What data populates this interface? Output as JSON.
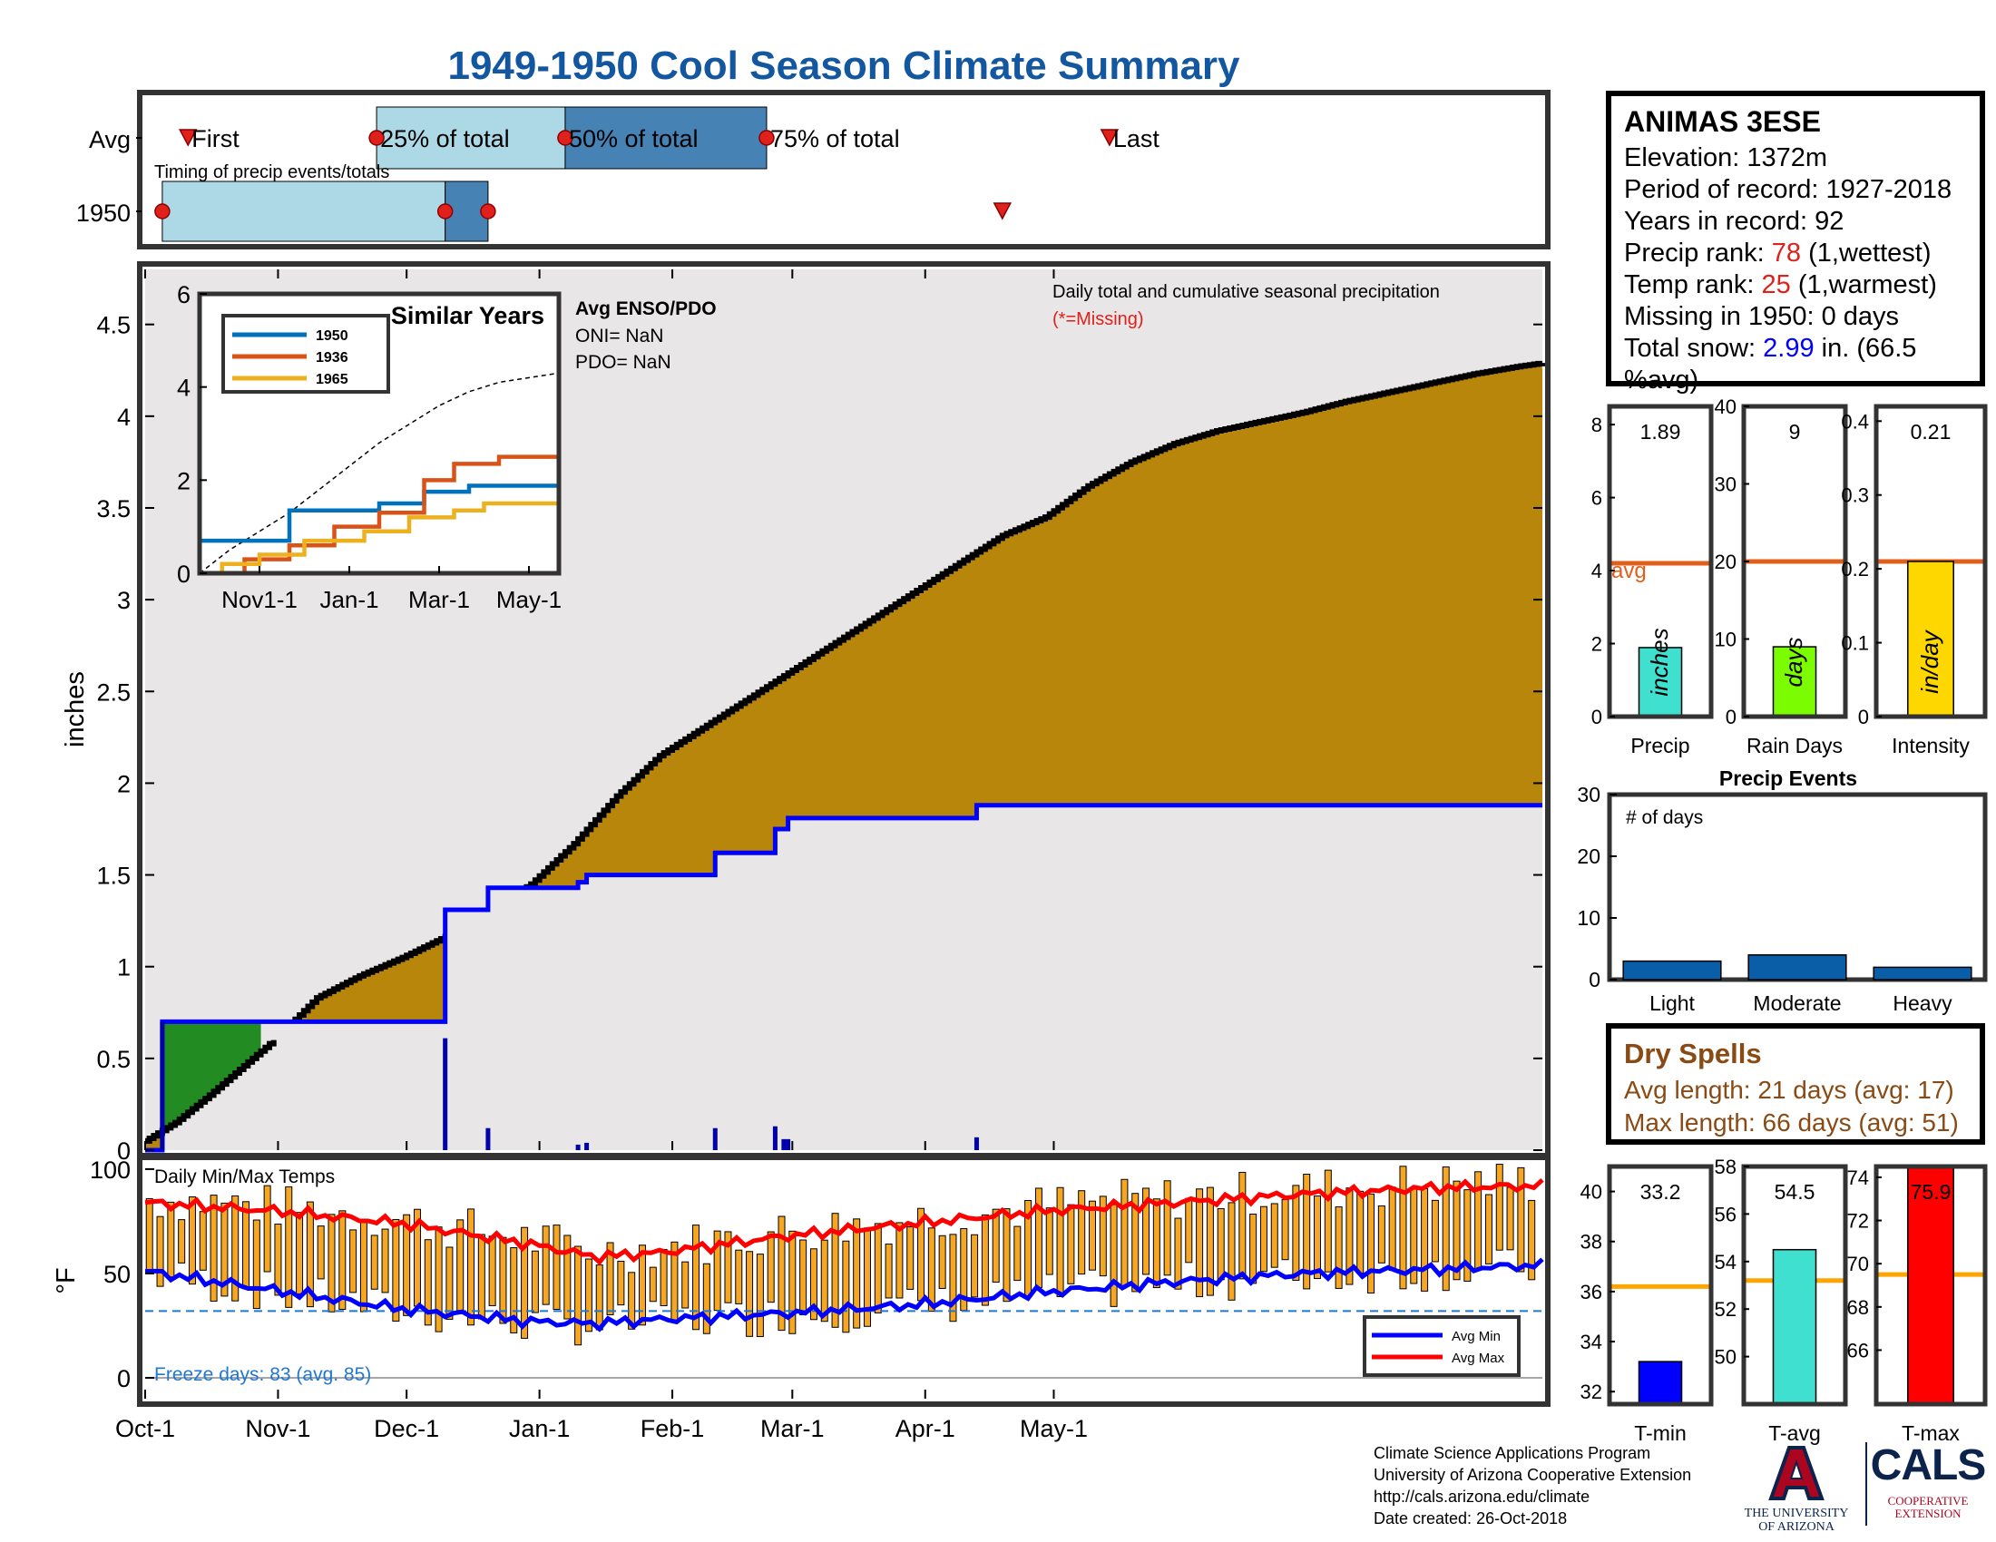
{
  "title": "1949-1950 Cool Season Climate Summary",
  "station": {
    "name": "ANIMAS 3ESE",
    "elevation": "Elevation: 1372m",
    "period": "Period of record: 1927-2018",
    "years": "Years in record: 92",
    "precip_rank_label": "Precip rank: ",
    "precip_rank_value": "78",
    "precip_rank_suffix": " (1,wettest)",
    "temp_rank_label": "Temp rank: ",
    "temp_rank_value": "25",
    "temp_rank_suffix": " (1,warmest)",
    "missing": "Missing in 1950: 0 days",
    "snow_label": "Total snow: ",
    "snow_value": "2.99",
    "snow_suffix": " in. (66.5",
    "snow_suffix2": "%avg)"
  },
  "dry_spells": {
    "title": "Dry Spells",
    "avg_line": "Avg length: 21 days (avg: 17)",
    "max_line": "Max length: 66 days (avg: 51)"
  },
  "footer": {
    "line1": "Climate Science Applications Program",
    "line2": "University of Arizona Cooperative Extension",
    "line3": "http://cals.arizona.edu/climate",
    "line4": " Date created: 26-Oct-2018"
  },
  "logos": {
    "ua_line1": "THE UNIVERSITY",
    "ua_line2": "OF ARIZONA",
    "cals": "CALS",
    "cals_sub1": "COOPERATIVE",
    "cals_sub2": "EXTENSION"
  },
  "colors": {
    "brand_blue": "#1357a0",
    "cum_avg_fill": "#b8860b",
    "cum_1950_line": "#0000ff",
    "green_fill": "#228b22",
    "missing_red": "#e0201b",
    "temp_bar": "#f5a623",
    "avg_min": "#0000ff",
    "avg_max": "#ff0000",
    "avg_line": "#e0601b"
  },
  "chart_data": [
    {
      "type": "timeline",
      "title": "Timing of precip events/totals",
      "rows": [
        "Avg",
        "1950"
      ],
      "avg_markers": [
        "First",
        "25% of total",
        "50% of total",
        "75% of total",
        "Last"
      ],
      "avg_dates": [
        "1949-10-11",
        "1949-11-24",
        "1950-01-07",
        "1950-02-23",
        "1950-05-14"
      ],
      "y1950_dates": [
        "1949-10-05",
        "1949-12-10",
        "1949-12-20"
      ],
      "y1950_last": "1950-04-19"
    },
    {
      "type": "area",
      "title": "Daily total and cumulative seasonal precipitation",
      "subtitle": "(*=Missing)",
      "ylabel": "inches",
      "ylim": [
        0,
        4.8
      ],
      "yticks": [
        0,
        0.5,
        1,
        1.5,
        2,
        2.5,
        3,
        3.5,
        4,
        4.5
      ],
      "xticks": [
        "Oct-1",
        "Nov-1",
        "Dec-1",
        "Jan-1",
        "Feb-1",
        "Mar-1",
        "Apr-1",
        "May-1"
      ],
      "avg_cumulative": [
        [
          0,
          0.05
        ],
        [
          7,
          0.15
        ],
        [
          15,
          0.3
        ],
        [
          25,
          0.5
        ],
        [
          31,
          0.62
        ],
        [
          40,
          0.83
        ],
        [
          50,
          0.95
        ],
        [
          60,
          1.05
        ],
        [
          75,
          1.22
        ],
        [
          90,
          1.45
        ],
        [
          100,
          1.67
        ],
        [
          110,
          1.93
        ],
        [
          120,
          2.15
        ],
        [
          130,
          2.3
        ],
        [
          140,
          2.45
        ],
        [
          150,
          2.6
        ],
        [
          160,
          2.75
        ],
        [
          170,
          2.9
        ],
        [
          180,
          3.05
        ],
        [
          190,
          3.2
        ],
        [
          200,
          3.35
        ],
        [
          210,
          3.45
        ],
        [
          220,
          3.62
        ],
        [
          230,
          3.75
        ],
        [
          240,
          3.85
        ],
        [
          250,
          3.92
        ],
        [
          260,
          3.97
        ],
        [
          270,
          4.02
        ],
        [
          280,
          4.08
        ],
        [
          290,
          4.13
        ],
        [
          300,
          4.18
        ],
        [
          310,
          4.23
        ],
        [
          320,
          4.27
        ],
        [
          326,
          4.29
        ]
      ],
      "cumulative_1950": [
        [
          0,
          0
        ],
        [
          4,
          0
        ],
        [
          4,
          0.7
        ],
        [
          70,
          0.7
        ],
        [
          70,
          1.31
        ],
        [
          80,
          1.31
        ],
        [
          80,
          1.43
        ],
        [
          101,
          1.43
        ],
        [
          101,
          1.46
        ],
        [
          103,
          1.46
        ],
        [
          103,
          1.5
        ],
        [
          133,
          1.5
        ],
        [
          133,
          1.62
        ],
        [
          147,
          1.62
        ],
        [
          147,
          1.75
        ],
        [
          150,
          1.75
        ],
        [
          150,
          1.81
        ],
        [
          194,
          1.81
        ],
        [
          194,
          1.88
        ],
        [
          326,
          1.88
        ]
      ],
      "daily_1950": [
        [
          4,
          0.7
        ],
        [
          70,
          0.61
        ],
        [
          80,
          0.12
        ],
        [
          101,
          0.03
        ],
        [
          103,
          0.04
        ],
        [
          133,
          0.12
        ],
        [
          147,
          0.13
        ],
        [
          149,
          0.06
        ],
        [
          150,
          0.06
        ],
        [
          194,
          0.07
        ]
      ]
    },
    {
      "type": "line",
      "title": "Similar Years",
      "xticks": [
        "Nov1-1",
        "Jan-1",
        "Mar-1",
        "May-1"
      ],
      "ylim": [
        0,
        6
      ],
      "yticks": [
        0,
        2,
        4,
        6
      ],
      "enso_title": "Avg ENSO/PDO",
      "oni": "ONI= NaN",
      "pdo": "PDO= NaN",
      "series": [
        {
          "name": "1950",
          "color": "#0072bd",
          "points": [
            [
              0,
              0.7
            ],
            [
              60,
              0.7
            ],
            [
              60,
              1.35
            ],
            [
              120,
              1.35
            ],
            [
              120,
              1.5
            ],
            [
              150,
              1.5
            ],
            [
              150,
              1.75
            ],
            [
              180,
              1.75
            ],
            [
              180,
              1.88
            ],
            [
              240,
              1.88
            ]
          ]
        },
        {
          "name": "1936",
          "color": "#d95319",
          "points": [
            [
              0,
              0
            ],
            [
              30,
              0
            ],
            [
              30,
              0.3
            ],
            [
              60,
              0.3
            ],
            [
              60,
              0.6
            ],
            [
              90,
              0.6
            ],
            [
              90,
              1.0
            ],
            [
              120,
              1.0
            ],
            [
              120,
              1.3
            ],
            [
              150,
              1.3
            ],
            [
              150,
              2.0
            ],
            [
              170,
              2.0
            ],
            [
              170,
              2.35
            ],
            [
              200,
              2.35
            ],
            [
              200,
              2.5
            ],
            [
              240,
              2.5
            ],
            [
              240,
              2.65
            ]
          ]
        },
        {
          "name": "1965",
          "color": "#edb120",
          "points": [
            [
              0,
              0
            ],
            [
              15,
              0
            ],
            [
              15,
              0.2
            ],
            [
              40,
              0.2
            ],
            [
              40,
              0.4
            ],
            [
              70,
              0.4
            ],
            [
              70,
              0.7
            ],
            [
              110,
              0.7
            ],
            [
              110,
              0.9
            ],
            [
              140,
              0.9
            ],
            [
              140,
              1.2
            ],
            [
              170,
              1.2
            ],
            [
              170,
              1.35
            ],
            [
              190,
              1.35
            ],
            [
              190,
              1.5
            ],
            [
              240,
              1.5
            ]
          ]
        }
      ],
      "avg_points": [
        [
          0,
          0
        ],
        [
          20,
          0.5
        ],
        [
          40,
          0.9
        ],
        [
          60,
          1.3
        ],
        [
          80,
          1.8
        ],
        [
          100,
          2.3
        ],
        [
          120,
          2.8
        ],
        [
          140,
          3.2
        ],
        [
          160,
          3.6
        ],
        [
          180,
          3.9
        ],
        [
          200,
          4.1
        ],
        [
          220,
          4.2
        ],
        [
          240,
          4.3
        ]
      ]
    },
    {
      "type": "bar",
      "categories": [
        "Precip",
        "Rain Days",
        "Intensity"
      ],
      "values": [
        1.89,
        9,
        0.21
      ],
      "averages": [
        4.2,
        20,
        0.21
      ],
      "labels": [
        "1.89",
        "9",
        "0.21"
      ],
      "units": [
        "inches",
        "days",
        "in/day"
      ],
      "ylims": [
        [
          0,
          8.5
        ],
        [
          0,
          40
        ],
        [
          0,
          0.42
        ]
      ],
      "yticks": [
        [
          0,
          2,
          4,
          6,
          8
        ],
        [
          0,
          10,
          20,
          30,
          40
        ],
        [
          0,
          0.1,
          0.2,
          0.3,
          0.4
        ]
      ],
      "avg_label": "avg",
      "colors": [
        "#40e0d0",
        "#7cfc00",
        "#ffd700"
      ]
    },
    {
      "type": "bar",
      "title": "Precip Events",
      "ylabel": "# of days",
      "categories": [
        "Light",
        "Moderate",
        "Heavy"
      ],
      "values": [
        3,
        4,
        2
      ],
      "ylim": [
        0,
        30
      ],
      "yticks": [
        0,
        10,
        20,
        30
      ]
    },
    {
      "type": "bar",
      "title": "Daily Min/Max Temps",
      "ylabel": "°F",
      "ylim": [
        -10,
        103
      ],
      "yticks": [
        0,
        50,
        100
      ],
      "freeze_line": 32,
      "freeze_label": "Freeze days: 83 (avg. 85)",
      "legend": [
        "Avg Min",
        "Avg Max"
      ],
      "avg_max_points": [
        [
          0,
          84
        ],
        [
          30,
          80
        ],
        [
          60,
          74
        ],
        [
          90,
          64
        ],
        [
          105,
          58
        ],
        [
          120,
          60
        ],
        [
          150,
          68
        ],
        [
          180,
          74
        ],
        [
          210,
          80
        ],
        [
          240,
          84
        ],
        [
          270,
          88
        ],
        [
          300,
          91
        ],
        [
          326,
          92
        ]
      ],
      "avg_min_points": [
        [
          0,
          51
        ],
        [
          30,
          42
        ],
        [
          60,
          33
        ],
        [
          90,
          27
        ],
        [
          105,
          26
        ],
        [
          120,
          28
        ],
        [
          150,
          31
        ],
        [
          180,
          35
        ],
        [
          210,
          41
        ],
        [
          240,
          46
        ],
        [
          270,
          50
        ],
        [
          300,
          52
        ],
        [
          326,
          54
        ]
      ]
    },
    {
      "type": "bar",
      "categories": [
        "T-min",
        "T-avg",
        "T-max"
      ],
      "values": [
        33.2,
        54.5,
        75.9
      ],
      "averages": [
        36.2,
        53.2,
        69.5
      ],
      "labels": [
        "33.2",
        "54.5",
        "75.9"
      ],
      "ylims": [
        [
          31.5,
          41
        ],
        [
          48,
          58
        ],
        [
          63.5,
          74.5
        ]
      ],
      "yticks": [
        [
          32,
          34,
          36,
          38,
          40
        ],
        [
          50,
          52,
          54,
          56,
          58
        ],
        [
          66,
          68,
          70,
          72,
          74
        ]
      ],
      "colors": [
        "#0000ff",
        "#40e0d0",
        "#ff0000"
      ]
    }
  ]
}
